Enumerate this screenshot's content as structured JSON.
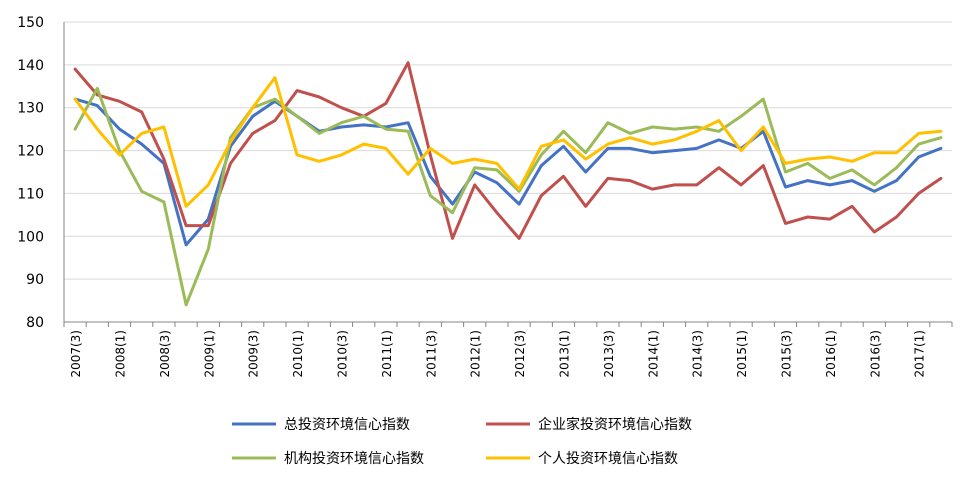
{
  "chart_data": {
    "type": "line",
    "title": "",
    "xlabel": "",
    "ylabel": "",
    "ylim": [
      80,
      150
    ],
    "yticks": [
      80,
      90,
      100,
      110,
      120,
      130,
      140,
      150
    ],
    "grid": "horizontal",
    "legend_position": "bottom",
    "x_tick_labels": [
      "2007(3)",
      "2008(1)",
      "2008(3)",
      "2009(1)",
      "2009(3)",
      "2010(1)",
      "2010(3)",
      "2011(1)",
      "2011(3)",
      "2012(1)",
      "2012(3)",
      "2013(1)",
      "2013(3)",
      "2014(1)",
      "2014(3)",
      "2015(1)",
      "2015(3)",
      "2016(1)",
      "2016(3)",
      "2017(1)"
    ],
    "series": [
      {
        "name": "总投资环境信心指数",
        "color": "#4472C4",
        "values": [
          132,
          130.5,
          125,
          121.5,
          117,
          98,
          104,
          121,
          128,
          131.5,
          128,
          124.5,
          125.5,
          126,
          125.5,
          126.5,
          114,
          107.5,
          115,
          112.5,
          107.5,
          116.5,
          121,
          115,
          120.5,
          120.5,
          119.5,
          120,
          120.5,
          122.5,
          120.5,
          124.5,
          111.5,
          113,
          112,
          113,
          110.5,
          113,
          118.5,
          120.5
        ]
      },
      {
        "name": "企业家投资环境信心指数",
        "color": "#C0504D",
        "values": [
          139,
          133,
          131.5,
          129,
          118,
          102.5,
          102.5,
          117,
          124,
          127,
          134,
          132.5,
          130,
          128,
          131,
          140.5,
          119,
          99.5,
          112,
          105.5,
          99.5,
          109.5,
          114,
          107,
          113.5,
          113,
          111,
          112,
          112,
          116,
          112,
          116.5,
          103,
          104.5,
          104,
          107,
          101,
          104.5,
          110,
          113.5
        ]
      },
      {
        "name": "机构投资环境信心指数",
        "color": "#9BBB59",
        "values": [
          125,
          134.5,
          120,
          110.5,
          108,
          84,
          97,
          123,
          130,
          132,
          128,
          124,
          126.5,
          128,
          125,
          124.5,
          109.5,
          105.5,
          116,
          115.5,
          110.5,
          119,
          124.5,
          119.5,
          126.5,
          124,
          125.5,
          125,
          125.5,
          124.5,
          128,
          132,
          115,
          117,
          113.5,
          115.5,
          112,
          116,
          121.5,
          123
        ]
      },
      {
        "name": "个人投资环境信心指数",
        "color": "#FFC000",
        "values": [
          132,
          125,
          119,
          124,
          125.5,
          107,
          112,
          122,
          130,
          137,
          119,
          117.5,
          119,
          121.5,
          120.5,
          114.5,
          120.5,
          117,
          118,
          117,
          111,
          121,
          122.5,
          118,
          121.5,
          123,
          121.5,
          122.5,
          124.5,
          127,
          120,
          125.5,
          117,
          118,
          118.5,
          117.5,
          119.5,
          119.5,
          124,
          124.5
        ]
      }
    ]
  }
}
